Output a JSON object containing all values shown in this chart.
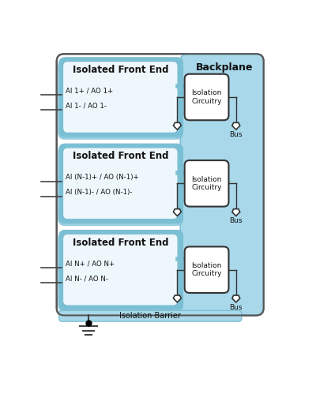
{
  "fig_width": 4.0,
  "fig_height": 5.18,
  "dpi": 100,
  "bg_color": "#ffffff",
  "light_blue": "#A8D8EA",
  "mid_blue": "#7BBFD4",
  "dark_blue": "#4AA0C0",
  "white": "#ffffff",
  "inner_bg": "#EEF7FC",
  "text_dark": "#111111",
  "arrow_color": "#333333",
  "line_color": "#444444",
  "outer_ec": "#555555",
  "circ_ec": "#333333",
  "panels": [
    {
      "title": "Isolated Front End",
      "label1": "AI 1+ / AO 1+",
      "label2": "AI 1- / AO 1-"
    },
    {
      "title": "Isolated Front End",
      "label1": "AI (N-1)+ / AO (N-1)+",
      "label2": "AI (N-1)- / AO (N-1)-"
    },
    {
      "title": "Isolated Front End",
      "label1": "AI N+ / AO N+",
      "label2": "AI N- / AO N-"
    }
  ]
}
